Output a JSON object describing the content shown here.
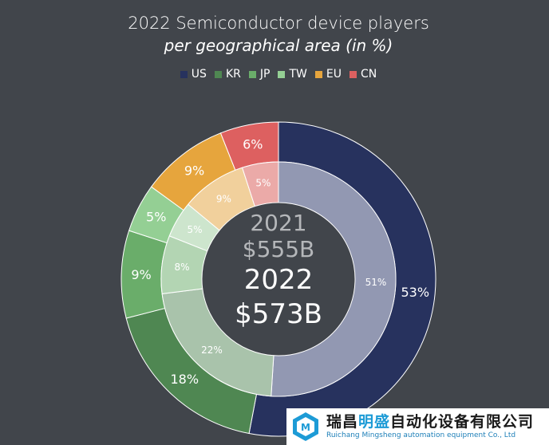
{
  "title": "2022 Semiconductor device players",
  "subtitle": "per geographical area (in %)",
  "center": {
    "year_inner": "2021",
    "value_inner": "$555B",
    "year_outer": "2022",
    "value_outer": "$573B"
  },
  "watermark": {
    "company_cn_part1": "瑞昌",
    "company_cn_part2": "明盛",
    "company_cn_part3": "自动化设备有限公司",
    "company_en": "Ruichang Mingsheng automation equipment Co., Ltd"
  },
  "chart_data": {
    "type": "pie",
    "title": "2022 Semiconductor device players",
    "subtitle": "per geographical area (in %)",
    "categories": [
      "US",
      "KR",
      "JP",
      "TW",
      "EU",
      "CN"
    ],
    "colors_outer": [
      "#27325e",
      "#4f8752",
      "#6aad6a",
      "#94cf94",
      "#e6a53d",
      "#dd6060"
    ],
    "colors_inner": [
      "#9298b2",
      "#a9c3ab",
      "#b3d5b3",
      "#cde5cd",
      "#f1d09c",
      "#ebaaa8"
    ],
    "legend_position": "top",
    "series": [
      {
        "name": "2022",
        "values": [
          53,
          18,
          9,
          5,
          9,
          6
        ],
        "labels": [
          "53%",
          "18%",
          "9%",
          "5%",
          "9%",
          "6%"
        ]
      },
      {
        "name": "2021",
        "values": [
          51,
          22,
          8,
          5,
          9,
          5
        ],
        "labels": [
          "51%",
          "22%",
          "8%",
          "5%",
          "9%",
          "5%"
        ]
      }
    ]
  }
}
